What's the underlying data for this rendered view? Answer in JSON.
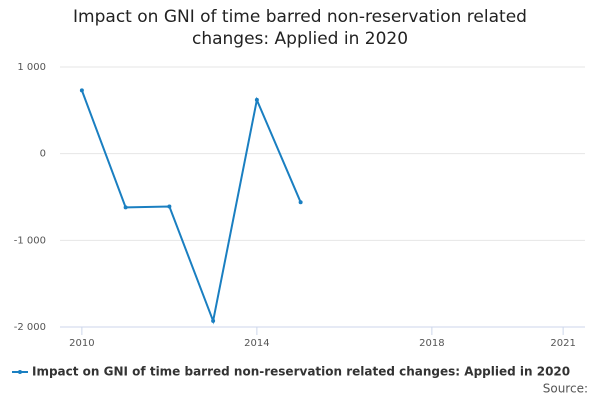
{
  "chart_data": {
    "type": "line",
    "title": "Impact on GNI of time barred non-reservation related changes: Applied in 2020",
    "x": [
      2010,
      2011,
      2012,
      2013,
      2014,
      2015
    ],
    "series": [
      {
        "name": "Impact on GNI of time barred non-reservation related changes: Applied in 2020",
        "color": "#1a7fc1",
        "values": [
          730,
          -620,
          -610,
          -1930,
          620,
          -560
        ]
      }
    ],
    "xlim": [
      2009.5,
      2021.5
    ],
    "xticks": [
      2010,
      2014,
      2018,
      2021
    ],
    "ylim": [
      -2000,
      1000
    ],
    "yticks": [
      {
        "value": 1000,
        "label": "1 000"
      },
      0,
      {
        "value": -1000,
        "label": "-1 000"
      },
      {
        "value": -2000,
        "label": "-2 000"
      }
    ],
    "grid": true,
    "legend": "bottom",
    "source": "Source:"
  }
}
